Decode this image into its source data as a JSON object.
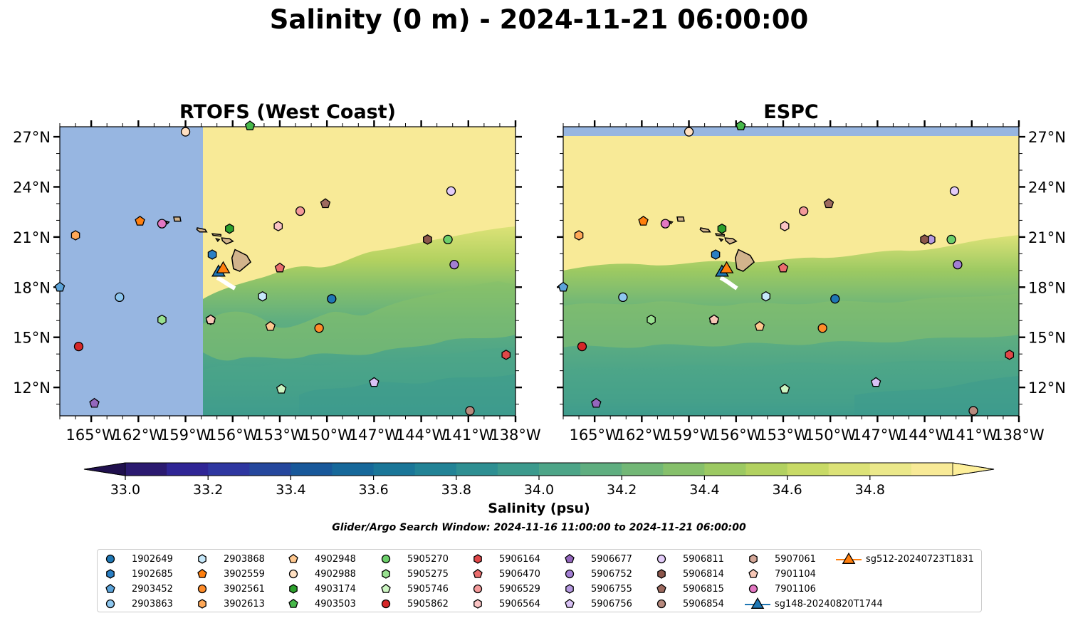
{
  "title": "Salinity (0 m) - 2024-11-21 06:00:00",
  "panels": [
    {
      "title": "RTOFS (West Coast)",
      "coverage_west_edge_lon": -157.5
    },
    {
      "title": "ESPC",
      "coverage_north_edge_lat": 27.1
    }
  ],
  "map": {
    "lon_range": [
      -167,
      -138
    ],
    "lat_range": [
      10.3,
      27.6
    ],
    "x_ticks": [
      {
        "value": -165,
        "label": "165°W"
      },
      {
        "value": -162,
        "label": "162°W"
      },
      {
        "value": -159,
        "label": "159°W"
      },
      {
        "value": -156,
        "label": "156°W"
      },
      {
        "value": -153,
        "label": "153°W"
      },
      {
        "value": -150,
        "label": "150°W"
      },
      {
        "value": -147,
        "label": "147°W"
      },
      {
        "value": -144,
        "label": "144°W"
      },
      {
        "value": -141,
        "label": "141°W"
      },
      {
        "value": -138,
        "label": "138°W"
      }
    ],
    "y_ticks": [
      {
        "value": 27,
        "label": "27°N"
      },
      {
        "value": 24,
        "label": "24°N"
      },
      {
        "value": 21,
        "label": "21°N"
      },
      {
        "value": 18,
        "label": "18°N"
      },
      {
        "value": 15,
        "label": "15°N"
      },
      {
        "value": 12,
        "label": "12°N"
      }
    ],
    "land_color": "#d2b48c",
    "no_data_color": "#97b6e1"
  },
  "colorbar": {
    "label": "Salinity (psu)",
    "min": 32.9,
    "max": 34.9,
    "step": 0.1,
    "ticks": [
      "33.0",
      "33.2",
      "33.4",
      "33.6",
      "33.8",
      "34.0",
      "34.2",
      "34.4",
      "34.6",
      "34.8"
    ],
    "colors": [
      "#2b1a70",
      "#2f2595",
      "#2e36a0",
      "#25479d",
      "#18589a",
      "#16689a",
      "#1a7698",
      "#228396",
      "#2e8f92",
      "#3c9a8d",
      "#4da588",
      "#5fae80",
      "#72b776",
      "#86c06b",
      "#9cc962",
      "#b2d160",
      "#c8da66",
      "#dce277",
      "#ebe88a",
      "#f8ea97"
    ],
    "extend_low": "#20104e",
    "extend_high": "#fdef9a"
  },
  "search_window": "Glider/Argo Search Window: 2024-11-16 11:00:00 to 2024-11-21 06:00:00",
  "platforms": [
    {
      "id": "1902649",
      "marker": "circle",
      "color": "#1f77b4",
      "rtofs": [
        -149.7,
        17.3
      ],
      "espc": [
        -149.7,
        17.3
      ]
    },
    {
      "id": "1902685",
      "marker": "hexagon",
      "color": "#2a7fc4",
      "rtofs": [
        -157.3,
        19.95
      ],
      "espc": [
        -157.3,
        19.95
      ]
    },
    {
      "id": "2903452",
      "marker": "pentagon",
      "color": "#5ba3d9",
      "rtofs": [
        -167,
        18.0
      ],
      "espc": [
        -167,
        18.0
      ]
    },
    {
      "id": "2903863",
      "marker": "circle",
      "color": "#8ec7ef",
      "rtofs": [
        -163.2,
        17.4
      ],
      "espc": [
        -163.2,
        17.4
      ]
    },
    {
      "id": "2903868",
      "marker": "hexagon",
      "color": "#c6e8fa",
      "rtofs": [
        -154.1,
        17.45
      ],
      "espc": [
        -154.1,
        17.45
      ]
    },
    {
      "id": "3902559",
      "marker": "pentagon",
      "color": "#ff7f0e",
      "rtofs": [
        -161.9,
        21.95
      ],
      "espc": [
        -161.9,
        21.95
      ]
    },
    {
      "id": "3902561",
      "marker": "circle",
      "color": "#ff8c29",
      "rtofs": [
        -150.5,
        15.55
      ],
      "espc": [
        -150.5,
        15.55
      ]
    },
    {
      "id": "3902613",
      "marker": "hexagon",
      "color": "#ffa857",
      "rtofs": [
        -166,
        21.1
      ],
      "espc": [
        -166,
        21.1
      ]
    },
    {
      "id": "4902948",
      "marker": "pentagon",
      "color": "#ffc88f",
      "rtofs": [
        -153.6,
        15.65
      ],
      "espc": [
        -154.5,
        15.65
      ]
    },
    {
      "id": "4902988",
      "marker": "circle",
      "color": "#ffe0c2",
      "rtofs": [
        -159.0,
        27.3
      ],
      "espc": [
        -159.0,
        27.3
      ]
    },
    {
      "id": "4903174",
      "marker": "hexagon",
      "color": "#2ca02c",
      "rtofs": [
        -156.2,
        21.5
      ],
      "espc": [
        -156.9,
        21.5
      ]
    },
    {
      "id": "4903503",
      "marker": "pentagon",
      "color": "#47b84a",
      "rtofs": [
        -154.9,
        27.65
      ],
      "espc": [
        -155.7,
        27.65
      ]
    },
    {
      "id": "5905270",
      "marker": "circle",
      "color": "#6ccf6a",
      "rtofs": [
        -142.3,
        20.85
      ],
      "espc": [
        -142.3,
        20.85
      ]
    },
    {
      "id": "5905275",
      "marker": "hexagon",
      "color": "#98e08f",
      "rtofs": [
        -160.5,
        16.05
      ],
      "espc": [
        -161.4,
        16.05
      ]
    },
    {
      "id": "5905746",
      "marker": "pentagon",
      "color": "#ccf5c2",
      "rtofs": [
        -152.9,
        11.9
      ],
      "espc": [
        -152.9,
        11.9
      ]
    },
    {
      "id": "5905862",
      "marker": "circle",
      "color": "#d62728",
      "rtofs": [
        -165.8,
        14.45
      ],
      "espc": [
        -165.8,
        14.45
      ]
    },
    {
      "id": "5906164",
      "marker": "hexagon",
      "color": "#e04748",
      "rtofs": [
        -138.6,
        13.95
      ],
      "espc": [
        -138.6,
        13.95
      ]
    },
    {
      "id": "5906470",
      "marker": "pentagon",
      "color": "#ea6d6d",
      "rtofs": [
        -153.0,
        19.15
      ],
      "espc": [
        -153.0,
        19.15
      ]
    },
    {
      "id": "5906529",
      "marker": "circle",
      "color": "#f49a9a",
      "rtofs": [
        -151.7,
        22.55
      ],
      "espc": [
        -151.7,
        22.55
      ]
    },
    {
      "id": "5906564",
      "marker": "hexagon",
      "color": "#fac3c3",
      "rtofs": [
        -153.1,
        21.65
      ],
      "espc": [
        -152.9,
        21.65
      ]
    },
    {
      "id": "5906677",
      "marker": "pentagon",
      "color": "#9467bd",
      "rtofs": [
        -164.8,
        11.05
      ],
      "espc": [
        -164.9,
        11.05
      ]
    },
    {
      "id": "5906752",
      "marker": "circle",
      "color": "#a37fd4",
      "rtofs": [
        -141.9,
        19.35
      ],
      "espc": [
        -141.9,
        19.35
      ]
    },
    {
      "id": "5906755",
      "marker": "hexagon",
      "color": "#b599e0",
      "rtofs": [
        -143.6,
        20.85
      ],
      "espc": [
        -143.6,
        20.85
      ]
    },
    {
      "id": "5906756",
      "marker": "pentagon",
      "color": "#d9c2f5",
      "rtofs": [
        -147.0,
        12.3
      ],
      "espc": [
        -147.1,
        12.3
      ]
    },
    {
      "id": "5906811",
      "marker": "circle",
      "color": "#e3ccf9",
      "rtofs": [
        -142.1,
        23.75
      ],
      "espc": [
        -142.1,
        23.75
      ]
    },
    {
      "id": "5906814",
      "marker": "hexagon",
      "color": "#8c564b",
      "rtofs": [
        -143.6,
        20.85
      ],
      "espc": [
        -144.0,
        20.85
      ]
    },
    {
      "id": "5906815",
      "marker": "pentagon",
      "color": "#9d6a5f",
      "rtofs": [
        -150.1,
        23.0
      ],
      "espc": [
        -150.1,
        23.0
      ]
    },
    {
      "id": "5906854",
      "marker": "circle",
      "color": "#b88a7e",
      "rtofs": [
        -140.9,
        10.6
      ],
      "espc": [
        -140.9,
        10.6
      ]
    },
    {
      "id": "5907061",
      "marker": "hexagon",
      "color": "#d4a798",
      "rtofs": [
        -157.4,
        16.05
      ],
      "espc": [
        -157.4,
        16.05
      ]
    },
    {
      "id": "7901104",
      "marker": "pentagon",
      "color": "#f7c7b6",
      "rtofs": [
        -157.4,
        16.05
      ],
      "espc": [
        -157.4,
        16.05
      ]
    },
    {
      "id": "7901106",
      "marker": "circle",
      "color": "#e377c2",
      "rtofs": [
        -160.5,
        21.8
      ],
      "espc": [
        -160.5,
        21.8
      ]
    },
    {
      "id": "sg148-20240820T1744",
      "marker": "triangle",
      "color": "#1f77b4",
      "rtofs": [
        -156.9,
        18.95
      ],
      "espc": [
        -156.9,
        18.95
      ]
    },
    {
      "id": "sg512-20240723T1831",
      "marker": "triangle",
      "color": "#ff7f0e",
      "rtofs": [
        -156.6,
        19.15
      ],
      "espc": [
        -156.6,
        19.15
      ]
    }
  ]
}
